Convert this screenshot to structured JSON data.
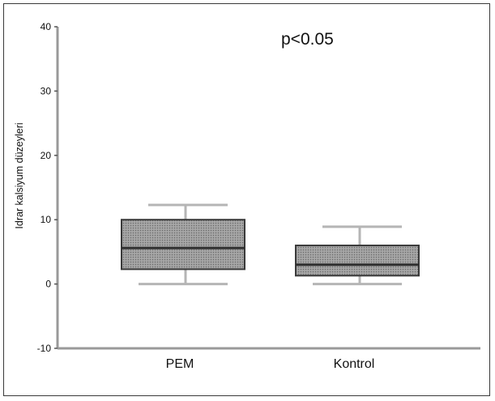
{
  "chart_data": {
    "type": "box",
    "title": "",
    "annotation": "p<0.05",
    "xlabel": "",
    "ylabel": "Idrar kalsiyum düzeyleri",
    "ylim": [
      -10,
      40
    ],
    "yticks": [
      -10,
      0,
      10,
      20,
      30,
      40
    ],
    "ytick_labels": [
      "-10",
      "0",
      "10",
      "20",
      "30",
      "40"
    ],
    "categories": [
      "PEM",
      "Kontrol"
    ],
    "boxes": [
      {
        "category": "PEM",
        "whisker_low": 0,
        "q1": 2.3,
        "median": 5.6,
        "q3": 10,
        "whisker_high": 12.3
      },
      {
        "category": "Kontrol",
        "whisker_low": 0,
        "q1": 1.3,
        "median": 3,
        "q3": 6,
        "whisker_high": 8.9
      }
    ],
    "grid": false,
    "legend": "none",
    "colors": {
      "box_fill": "#9a9a9a",
      "box_edge": "#3a3a3a",
      "whisker": "#b5b5b5",
      "axis": "#999999"
    }
  }
}
